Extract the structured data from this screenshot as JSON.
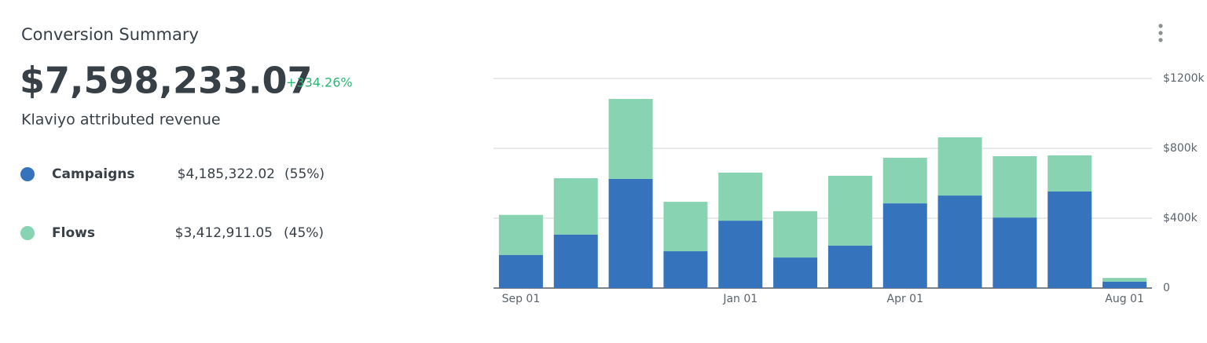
{
  "header": {
    "title": "Conversion Summary"
  },
  "summary": {
    "total": "$7,598,233.07",
    "change": "+334.26%",
    "subtitle": "Klaviyo attributed revenue",
    "items": [
      {
        "amount": "$4,185,322.02",
        "share": "(55%)"
      },
      {
        "amount": "$3,412,911.05",
        "share": "(45%)"
      }
    ]
  },
  "chart_data": {
    "type": "stacked-bar",
    "categories": [
      "Sep 01",
      null,
      null,
      null,
      "Jan 01",
      null,
      null,
      "Apr 01",
      null,
      null,
      null,
      "Aug 01"
    ],
    "series": [
      {
        "name": "Campaigns",
        "color": "#3574bc",
        "values": [
          190000,
          306000,
          625000,
          211000,
          386000,
          175000,
          243000,
          485000,
          530000,
          404000,
          553000,
          36000
        ]
      },
      {
        "name": "Flows",
        "color": "#88d3b1",
        "values": [
          229000,
          323000,
          458000,
          283000,
          275000,
          265000,
          400000,
          261000,
          333000,
          351000,
          207000,
          22000
        ]
      }
    ],
    "ylim": [
      0,
      1200000
    ],
    "yticks": [
      0,
      {
        "value": 400000,
        "label": "$400k"
      },
      {
        "value": 800000,
        "label": "$800k"
      },
      {
        "value": 1200000,
        "label": "$1200k"
      }
    ],
    "grid": true
  }
}
